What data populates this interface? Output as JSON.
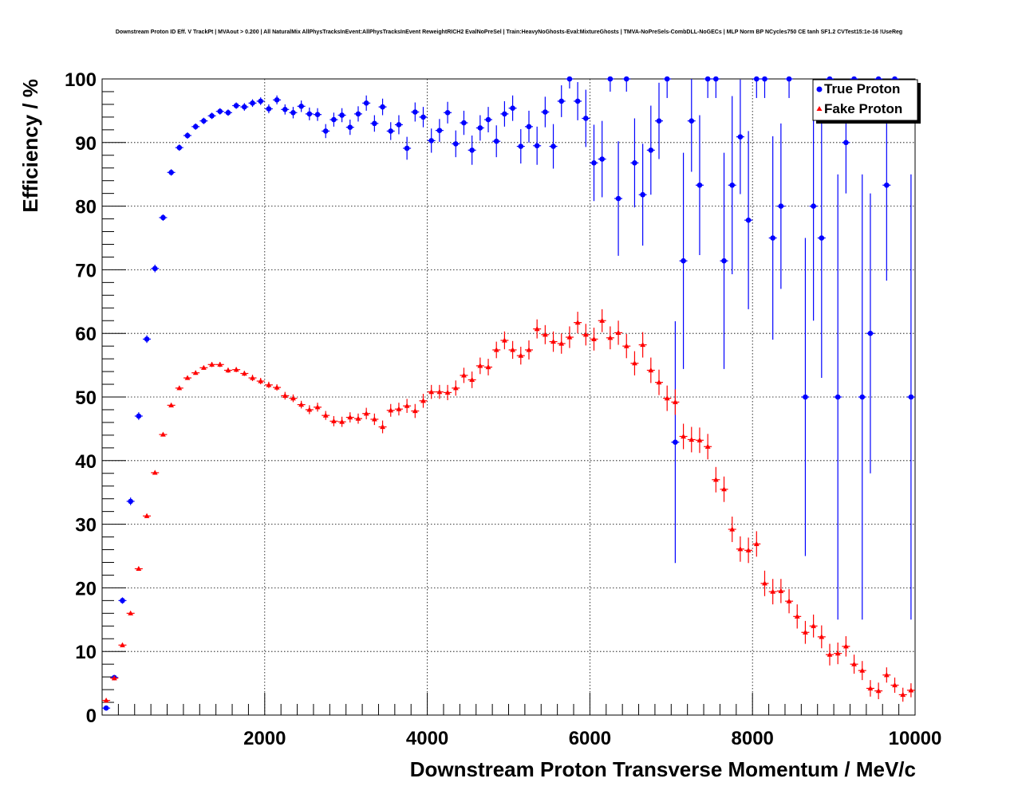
{
  "chart_data": {
    "type": "scatter",
    "title": "Downstream Proton ID Eff. V TrackPt | MVAout > 0.200 | All NaturalMix AllPhysTracksInEvent:AllPhysTracksInEvent ReweightRICH2 EvalNoPreSel | Train:HeavyNoGhosts-Eval:MixtureGhosts | TMVA-NoPreSels-CombDLL-NoGECs | MLP Norm BP NCycles750 CE tanh SF1.2 CVTest15:1e-16 !UseReg",
    "xlabel": "Downstream Proton Transverse Momentum / MeV/c",
    "ylabel": "Efficiency / %",
    "xlim": [
      0,
      10000
    ],
    "ylim": [
      0,
      100
    ],
    "x_ticks": [
      2000,
      4000,
      6000,
      8000,
      10000
    ],
    "y_ticks": [
      0,
      10,
      20,
      30,
      40,
      50,
      60,
      70,
      80,
      90,
      100
    ],
    "grid": true,
    "legend_position": "top-right",
    "series": [
      {
        "name": "True Proton",
        "color": "#0000ff",
        "marker": "circle",
        "points": [
          [
            50,
            1.1,
            0.3
          ],
          [
            150,
            5.9,
            0.4
          ],
          [
            250,
            18.0,
            0.5
          ],
          [
            350,
            33.6,
            0.6
          ],
          [
            450,
            47.0,
            0.6
          ],
          [
            550,
            59.1,
            0.6
          ],
          [
            650,
            70.2,
            0.6
          ],
          [
            750,
            78.2,
            0.5
          ],
          [
            850,
            85.3,
            0.5
          ],
          [
            950,
            89.2,
            0.5
          ],
          [
            1050,
            91.1,
            0.5
          ],
          [
            1150,
            92.5,
            0.5
          ],
          [
            1250,
            93.4,
            0.5
          ],
          [
            1350,
            94.2,
            0.5
          ],
          [
            1450,
            94.9,
            0.5
          ],
          [
            1550,
            94.7,
            0.5
          ],
          [
            1650,
            95.8,
            0.5
          ],
          [
            1750,
            95.6,
            0.6
          ],
          [
            1850,
            96.2,
            0.6
          ],
          [
            1950,
            96.5,
            0.6
          ],
          [
            2050,
            95.3,
            0.7
          ],
          [
            2150,
            96.7,
            0.7
          ],
          [
            2250,
            95.2,
            0.8
          ],
          [
            2350,
            94.7,
            0.9
          ],
          [
            2450,
            95.7,
            0.9
          ],
          [
            2550,
            94.5,
            1.0
          ],
          [
            2650,
            94.4,
            1.0
          ],
          [
            2750,
            91.8,
            1.1
          ],
          [
            2850,
            93.6,
            1.1
          ],
          [
            2950,
            94.3,
            1.1
          ],
          [
            3050,
            92.4,
            1.2
          ],
          [
            3150,
            94.5,
            1.2
          ],
          [
            3250,
            96.2,
            1.2
          ],
          [
            3350,
            93.0,
            1.3
          ],
          [
            3450,
            95.6,
            1.3
          ],
          [
            3550,
            91.8,
            1.4
          ],
          [
            3650,
            92.8,
            1.5
          ],
          [
            3750,
            89.1,
            1.8
          ],
          [
            3850,
            94.8,
            1.5
          ],
          [
            3950,
            94.0,
            1.6
          ],
          [
            4050,
            90.3,
            1.9
          ],
          [
            4150,
            91.9,
            1.8
          ],
          [
            4250,
            94.7,
            1.7
          ],
          [
            4350,
            89.8,
            2.1
          ],
          [
            4450,
            93.1,
            1.9
          ],
          [
            4550,
            88.8,
            2.3
          ],
          [
            4650,
            92.3,
            2.0
          ],
          [
            4750,
            93.6,
            2.0
          ],
          [
            4850,
            90.2,
            2.5
          ],
          [
            4950,
            94.5,
            2.0
          ],
          [
            5050,
            95.4,
            2.0
          ],
          [
            5150,
            89.4,
            2.7
          ],
          [
            5250,
            92.5,
            2.5
          ],
          [
            5350,
            89.5,
            3.0
          ],
          [
            5450,
            94.8,
            2.4
          ],
          [
            5550,
            89.4,
            3.5
          ],
          [
            5650,
            96.5,
            2.5
          ],
          [
            5750,
            100.0,
            1.5
          ],
          [
            5850,
            96.5,
            3.0
          ],
          [
            5950,
            93.8,
            4.5
          ],
          [
            6050,
            86.8,
            6.0
          ],
          [
            6150,
            87.4,
            6.0
          ],
          [
            6250,
            100.0,
            2.0
          ],
          [
            6350,
            81.2,
            9.0
          ],
          [
            6450,
            100.0,
            2.0
          ],
          [
            6550,
            86.8,
            7.0
          ],
          [
            6650,
            81.8,
            8.0
          ],
          [
            6750,
            88.8,
            7.0
          ],
          [
            6850,
            93.4,
            6.0
          ],
          [
            6950,
            100.0,
            3.0
          ],
          [
            7050,
            42.9,
            19.0
          ],
          [
            7150,
            71.4,
            17.0
          ],
          [
            7250,
            93.4,
            8.0
          ],
          [
            7350,
            83.3,
            11.0
          ],
          [
            7450,
            100.0,
            3.0
          ],
          [
            7550,
            100.0,
            3.0
          ],
          [
            7650,
            71.4,
            17.0
          ],
          [
            7750,
            83.3,
            14.0
          ],
          [
            7850,
            90.9,
            9.0
          ],
          [
            7950,
            77.8,
            14.0
          ],
          [
            8050,
            100.0,
            3.0
          ],
          [
            8150,
            100.0,
            3.0
          ],
          [
            8250,
            75.0,
            16.0
          ],
          [
            8350,
            80.0,
            13.0
          ],
          [
            8450,
            100.0,
            3.0
          ],
          [
            8650,
            50.0,
            25.0
          ],
          [
            8750,
            80.0,
            18.0
          ],
          [
            8850,
            75.0,
            22.0
          ],
          [
            8950,
            100.0,
            3.0
          ],
          [
            9050,
            50.0,
            35.0
          ],
          [
            9150,
            90.0,
            8.0
          ],
          [
            9250,
            100.0,
            3.0
          ],
          [
            9350,
            50.0,
            35.0
          ],
          [
            9450,
            60.0,
            22.0
          ],
          [
            9550,
            100.0,
            3.0
          ],
          [
            9650,
            83.3,
            15.0
          ],
          [
            9750,
            100.0,
            3.0
          ],
          [
            9950,
            50.0,
            35.0
          ]
        ]
      },
      {
        "name": "Fake Proton",
        "color": "#ff0000",
        "marker": "triangle",
        "points": [
          [
            50,
            2.3,
            0.3
          ],
          [
            150,
            5.8,
            0.3
          ],
          [
            250,
            11.0,
            0.3
          ],
          [
            350,
            16.0,
            0.3
          ],
          [
            450,
            23.0,
            0.3
          ],
          [
            550,
            31.3,
            0.3
          ],
          [
            650,
            38.1,
            0.3
          ],
          [
            750,
            44.1,
            0.3
          ],
          [
            850,
            48.7,
            0.3
          ],
          [
            950,
            51.4,
            0.3
          ],
          [
            1050,
            53.0,
            0.3
          ],
          [
            1150,
            53.8,
            0.3
          ],
          [
            1250,
            54.6,
            0.3
          ],
          [
            1350,
            55.1,
            0.4
          ],
          [
            1450,
            55.1,
            0.4
          ],
          [
            1550,
            54.2,
            0.4
          ],
          [
            1650,
            54.3,
            0.4
          ],
          [
            1750,
            53.7,
            0.4
          ],
          [
            1850,
            53.0,
            0.5
          ],
          [
            1950,
            52.5,
            0.5
          ],
          [
            2050,
            51.9,
            0.5
          ],
          [
            2150,
            51.5,
            0.5
          ],
          [
            2250,
            50.2,
            0.6
          ],
          [
            2350,
            49.8,
            0.6
          ],
          [
            2450,
            48.8,
            0.6
          ],
          [
            2550,
            48.0,
            0.7
          ],
          [
            2650,
            48.4,
            0.7
          ],
          [
            2750,
            47.1,
            0.7
          ],
          [
            2850,
            46.2,
            0.8
          ],
          [
            2950,
            46.1,
            0.8
          ],
          [
            3050,
            46.8,
            0.8
          ],
          [
            3150,
            46.6,
            0.8
          ],
          [
            3250,
            47.4,
            0.9
          ],
          [
            3350,
            46.5,
            0.9
          ],
          [
            3450,
            45.3,
            1.0
          ],
          [
            3550,
            47.9,
            1.0
          ],
          [
            3650,
            48.1,
            1.0
          ],
          [
            3750,
            48.6,
            1.1
          ],
          [
            3850,
            47.8,
            1.1
          ],
          [
            3950,
            49.4,
            1.1
          ],
          [
            4050,
            50.8,
            1.1
          ],
          [
            4150,
            50.8,
            1.1
          ],
          [
            4250,
            50.7,
            1.2
          ],
          [
            4350,
            51.4,
            1.2
          ],
          [
            4450,
            53.4,
            1.2
          ],
          [
            4550,
            52.7,
            1.3
          ],
          [
            4650,
            54.9,
            1.3
          ],
          [
            4750,
            54.7,
            1.3
          ],
          [
            4850,
            57.4,
            1.3
          ],
          [
            4950,
            58.9,
            1.4
          ],
          [
            5050,
            57.4,
            1.4
          ],
          [
            5150,
            56.5,
            1.4
          ],
          [
            5250,
            57.4,
            1.5
          ],
          [
            5350,
            60.7,
            1.5
          ],
          [
            5450,
            59.8,
            1.5
          ],
          [
            5550,
            58.7,
            1.6
          ],
          [
            5650,
            58.4,
            1.6
          ],
          [
            5750,
            59.4,
            1.7
          ],
          [
            5850,
            61.7,
            1.7
          ],
          [
            5950,
            59.8,
            1.7
          ],
          [
            6050,
            59.1,
            1.8
          ],
          [
            6150,
            62.0,
            1.8
          ],
          [
            6250,
            59.3,
            1.8
          ],
          [
            6350,
            60.1,
            1.9
          ],
          [
            6450,
            58.0,
            1.9
          ],
          [
            6550,
            55.3,
            1.9
          ],
          [
            6650,
            58.2,
            2.0
          ],
          [
            6750,
            54.2,
            2.0
          ],
          [
            6850,
            52.3,
            2.0
          ],
          [
            6950,
            49.8,
            2.0
          ],
          [
            7050,
            49.2,
            2.0
          ],
          [
            7150,
            43.8,
            2.0
          ],
          [
            7250,
            43.3,
            2.0
          ],
          [
            7350,
            43.2,
            2.0
          ],
          [
            7450,
            42.2,
            2.0
          ],
          [
            7550,
            37.0,
            2.0
          ],
          [
            7650,
            35.5,
            2.0
          ],
          [
            7750,
            29.2,
            2.0
          ],
          [
            7850,
            26.1,
            2.0
          ],
          [
            7950,
            25.9,
            2.0
          ],
          [
            8050,
            26.9,
            2.0
          ],
          [
            8150,
            20.7,
            2.0
          ],
          [
            8250,
            19.4,
            2.0
          ],
          [
            8350,
            19.5,
            1.9
          ],
          [
            8450,
            17.9,
            1.9
          ],
          [
            8550,
            15.5,
            1.9
          ],
          [
            8650,
            13.0,
            1.8
          ],
          [
            8750,
            14.0,
            1.8
          ],
          [
            8850,
            12.3,
            1.8
          ],
          [
            8950,
            9.5,
            1.7
          ],
          [
            9050,
            9.7,
            1.7
          ],
          [
            9150,
            10.8,
            1.6
          ],
          [
            9250,
            8.0,
            1.5
          ],
          [
            9350,
            7.0,
            1.5
          ],
          [
            9450,
            4.2,
            1.3
          ],
          [
            9550,
            3.8,
            1.3
          ],
          [
            9650,
            6.3,
            1.2
          ],
          [
            9750,
            4.7,
            1.2
          ],
          [
            9850,
            3.2,
            1.1
          ],
          [
            9950,
            3.9,
            1.1
          ]
        ]
      }
    ]
  }
}
